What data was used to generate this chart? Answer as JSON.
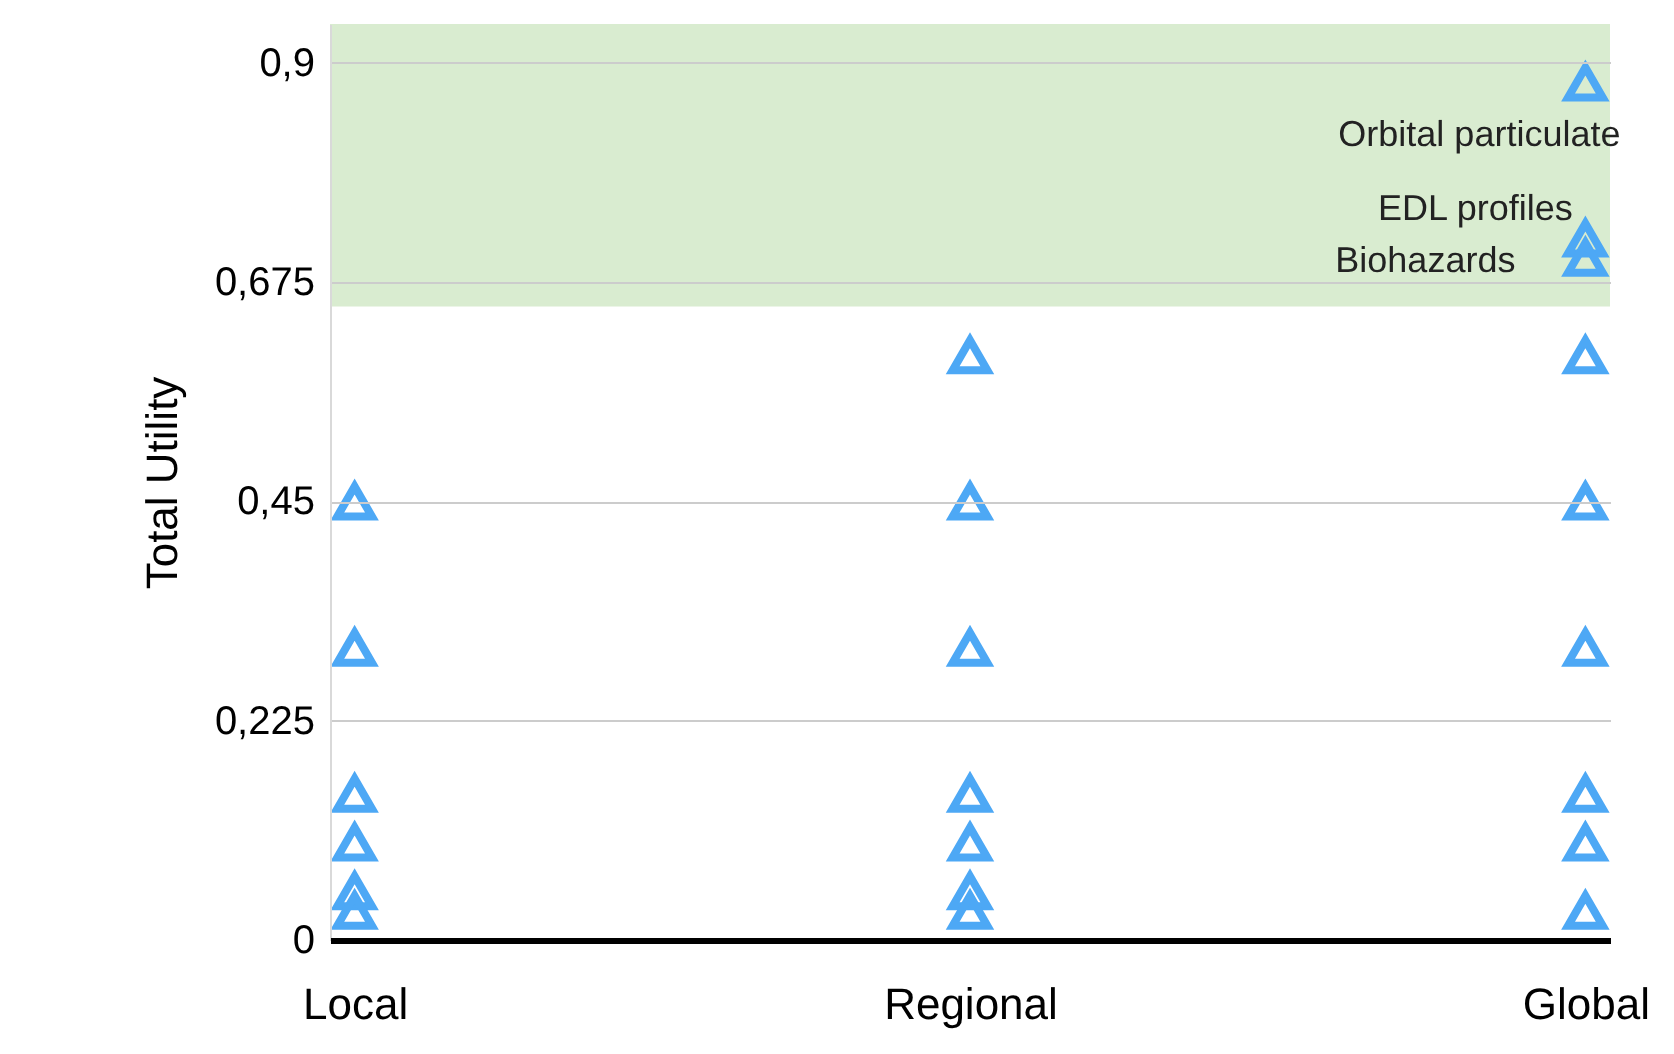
{
  "chart_data": {
    "type": "scatter",
    "ylabel": "Total Utility",
    "categories": [
      "Local",
      "Regional",
      "Global"
    ],
    "series": [
      {
        "color": "#4da8f5",
        "x": [
          "Local",
          "Local",
          "Local",
          "Local",
          "Local",
          "Local",
          "Regional",
          "Regional",
          "Regional",
          "Regional",
          "Regional",
          "Regional",
          "Regional",
          "Global",
          "Global",
          "Global",
          "Global",
          "Global",
          "Global",
          "Global",
          "Global",
          "Global"
        ],
        "values": [
          0.45,
          0.3,
          0.15,
          0.1,
          0.05,
          0.03,
          0.6,
          0.45,
          0.3,
          0.15,
          0.1,
          0.05,
          0.03,
          0.88,
          0.72,
          0.7,
          0.6,
          0.45,
          0.3,
          0.15,
          0.1,
          0.03
        ]
      }
    ],
    "marker": "triangle",
    "ylim": [
      0,
      0.94
    ],
    "yticks": [
      {
        "value": 0,
        "label": "0"
      },
      {
        "value": 0.225,
        "label": "0,225"
      },
      {
        "value": 0.45,
        "label": "0,45"
      },
      {
        "value": 0.675,
        "label": "0,675"
      },
      {
        "value": 0.9,
        "label": "0,9"
      }
    ],
    "grid": "y",
    "bands": [
      {
        "axis": "y",
        "from": 0.65,
        "to": 0.94,
        "color": "#d9ecd0"
      }
    ],
    "annotations": [
      {
        "text": "Orbital particulate",
        "x": "Global",
        "y": 0.88
      },
      {
        "text": "EDL profiles",
        "x": "Global",
        "y": 0.72
      },
      {
        "text": "Biohazards",
        "x": "Global",
        "y": 0.7
      }
    ]
  }
}
